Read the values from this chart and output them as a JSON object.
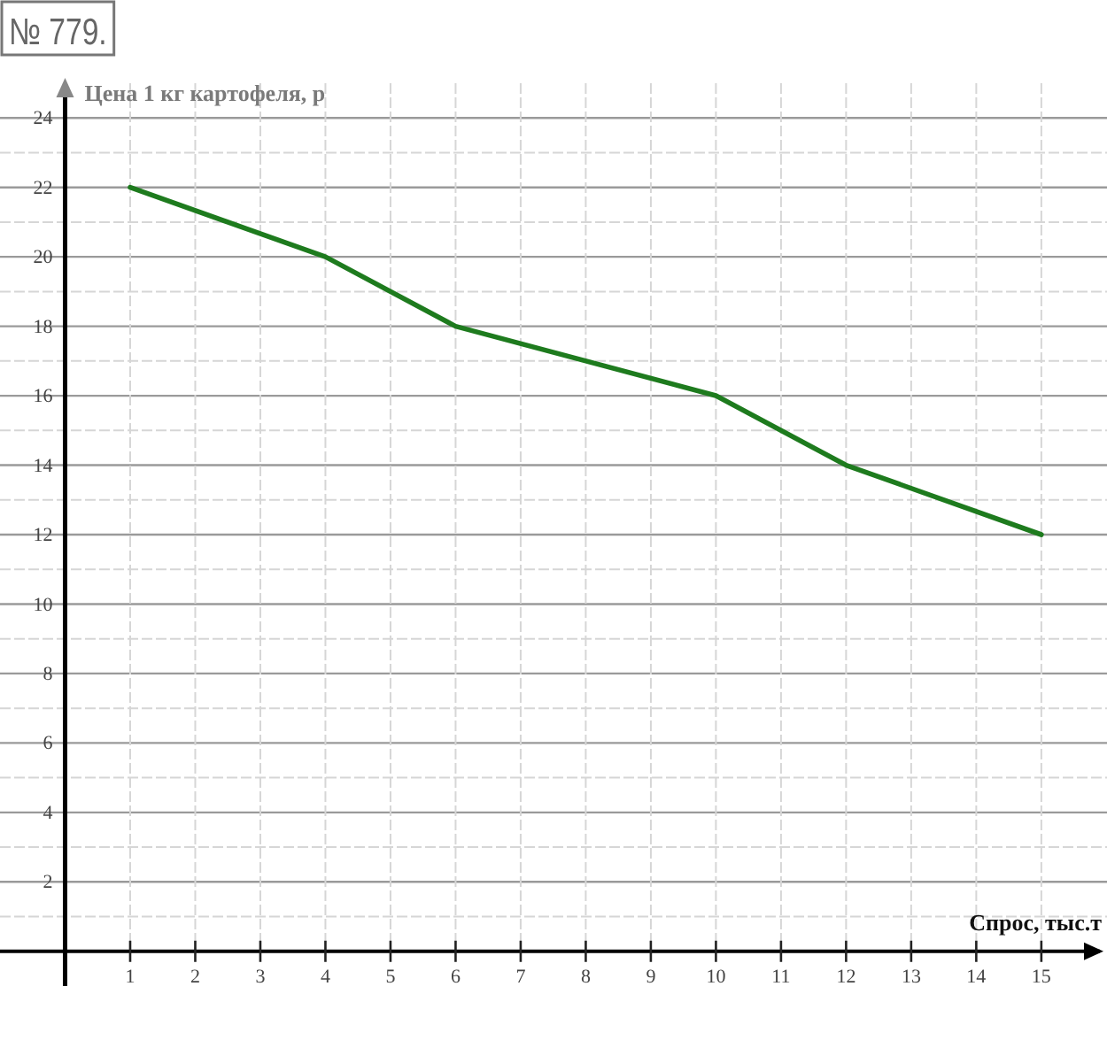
{
  "chart_data": {
    "type": "line",
    "xlabel": "Спрос, тыс.т",
    "ylabel": "Цена 1 кг картофеля, р",
    "annotations": [
      "№ 779."
    ],
    "x": [
      1,
      4,
      6,
      10,
      12,
      15
    ],
    "series": [
      {
        "color": "#1e7b1e",
        "values": [
          22,
          20,
          18,
          16,
          14,
          12
        ]
      }
    ],
    "xlim": [
      -1,
      15.9
    ],
    "ylim": [
      -1,
      25
    ],
    "xticks": [
      1,
      2,
      3,
      4,
      5,
      6,
      7,
      8,
      9,
      10,
      11,
      12,
      13,
      14,
      15
    ],
    "yticks": [
      {
        "value": 1,
        "label": null
      },
      2,
      {
        "value": 3,
        "label": null
      },
      4,
      {
        "value": 5,
        "label": null
      },
      6,
      {
        "value": 7,
        "label": null
      },
      8,
      {
        "value": 9,
        "label": null
      },
      10,
      {
        "value": 11,
        "label": null
      },
      12,
      {
        "value": 13,
        "label": null
      },
      14,
      {
        "value": 15,
        "label": null
      },
      16,
      {
        "value": 17,
        "label": null
      },
      18,
      {
        "value": 19,
        "label": null
      },
      20,
      {
        "value": 21,
        "label": null
      },
      22,
      {
        "value": 23,
        "label": null
      },
      24
    ],
    "grid": true,
    "marker": "none",
    "line_style": "solid"
  }
}
